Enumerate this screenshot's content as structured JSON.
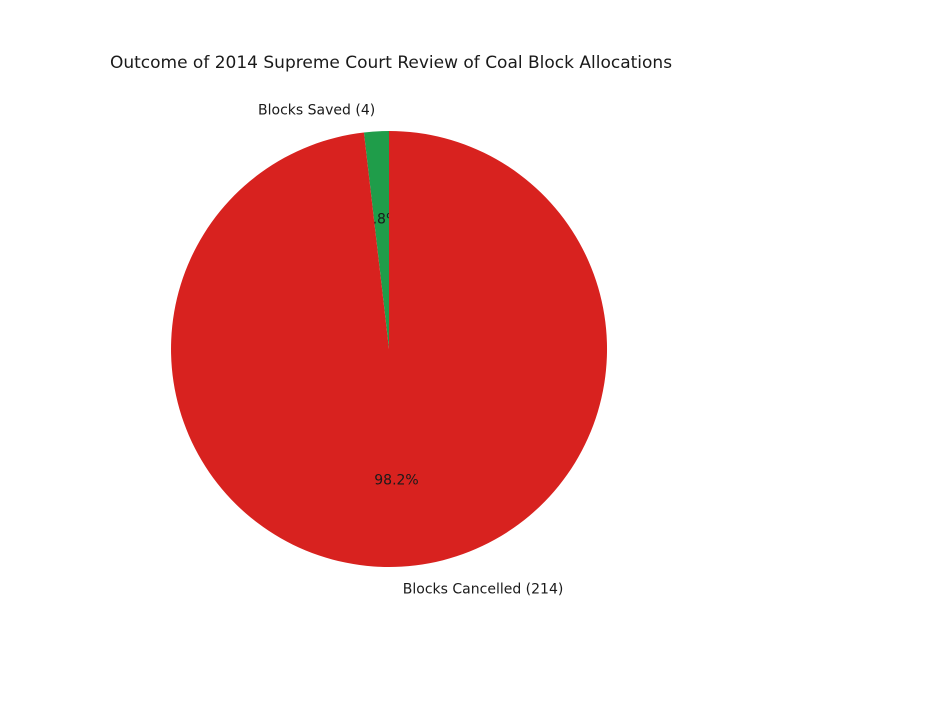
{
  "chart_data": {
    "type": "pie",
    "title": "Outcome of 2014 Supreme Court Review of Coal Block Allocations",
    "slices": [
      {
        "label": "Blocks Saved (4)",
        "value": 4,
        "pct_label": "1.8%",
        "pct": 1.8,
        "color": "#1f9d4a"
      },
      {
        "label": "Blocks Cancelled (214)",
        "value": 214,
        "pct_label": "98.2%",
        "pct": 98.2,
        "color": "#d8221f"
      }
    ],
    "start_angle_deg": 90,
    "counterclock": true,
    "label_radius_ratio": 1.1,
    "pct_radius_ratio": 0.6,
    "legend": "none",
    "grid": "off",
    "background_color": "#ffffff",
    "text_color": "#1a1a1a"
  }
}
